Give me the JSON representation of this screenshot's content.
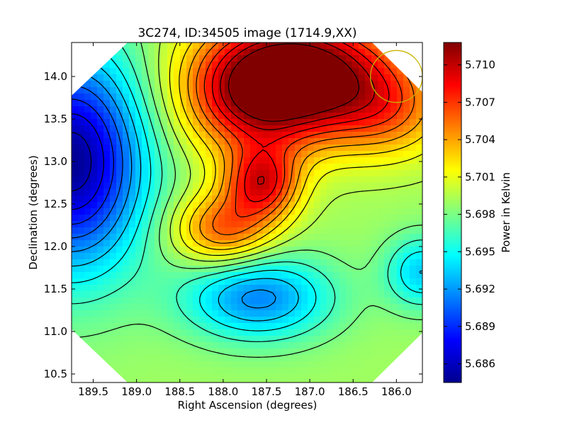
{
  "chart_data": {
    "type": "heatmap",
    "title": "3C274, ID:34505 image (1714.9,XX)",
    "xlabel": "Right Ascension (degrees)",
    "ylabel": "Declination (degrees)",
    "x_reversed": true,
    "xlim": [
      189.75,
      185.7
    ],
    "ylim": [
      10.4,
      14.4
    ],
    "x_ticks": [
      189.5,
      189.0,
      188.5,
      188.0,
      187.5,
      187.0,
      186.5,
      186.0
    ],
    "x_tick_labels": [
      "189.5",
      "189.0",
      "188.5",
      "188.0",
      "187.5",
      "187.0",
      "186.5",
      "186.0"
    ],
    "y_ticks": [
      10.5,
      11.0,
      11.5,
      12.0,
      12.5,
      13.0,
      13.5,
      14.0
    ],
    "y_tick_labels": [
      "10.5",
      "11.0",
      "11.5",
      "12.0",
      "12.5",
      "13.0",
      "13.5",
      "14.0"
    ],
    "colorbar": {
      "label": "Power in Kelvin",
      "range": [
        5.6845,
        5.7118
      ],
      "ticks": [
        5.686,
        5.689,
        5.692,
        5.695,
        5.698,
        5.701,
        5.704,
        5.707,
        5.71
      ],
      "tick_labels": [
        "5.686",
        "5.689",
        "5.692",
        "5.695",
        "5.698",
        "5.701",
        "5.704",
        "5.707",
        "5.710"
      ],
      "colormap": "jet"
    },
    "contour_step": 0.0015,
    "background_level": 5.699,
    "features": [
      {
        "kind": "peak",
        "ra": 187.05,
        "dec": 14.05,
        "value": 5.7115,
        "width_ra": 0.75,
        "width_dec": 0.5
      },
      {
        "kind": "peak",
        "ra": 187.65,
        "dec": 13.75,
        "value": 5.7068,
        "width_ra": 0.6,
        "width_dec": 0.5
      },
      {
        "kind": "peak",
        "ra": 187.55,
        "dec": 12.75,
        "value": 5.708,
        "width_ra": 0.3,
        "width_dec": 0.3
      },
      {
        "kind": "peak",
        "ra": 188.0,
        "dec": 12.2,
        "value": 5.706,
        "width_ra": 0.4,
        "width_dec": 0.3
      },
      {
        "kind": "peak",
        "ra": 186.1,
        "dec": 13.6,
        "value": 5.704,
        "width_ra": 0.5,
        "width_dec": 0.4
      },
      {
        "kind": "trough",
        "ra": 189.75,
        "dec": 13.0,
        "value": 5.685,
        "width_ra": 0.6,
        "width_dec": 0.9
      },
      {
        "kind": "trough",
        "ra": 187.6,
        "dec": 11.4,
        "value": 5.6915,
        "width_ra": 0.6,
        "width_dec": 0.35
      },
      {
        "kind": "trough",
        "ra": 185.7,
        "dec": 11.7,
        "value": 5.6935,
        "width_ra": 0.3,
        "width_dec": 0.3
      }
    ],
    "beam_circle": {
      "ra": 186.0,
      "dec": 14.0,
      "radius_deg": 0.3,
      "color": "#c8b400"
    },
    "mask": "octagon",
    "grid": false,
    "legend": "none"
  }
}
